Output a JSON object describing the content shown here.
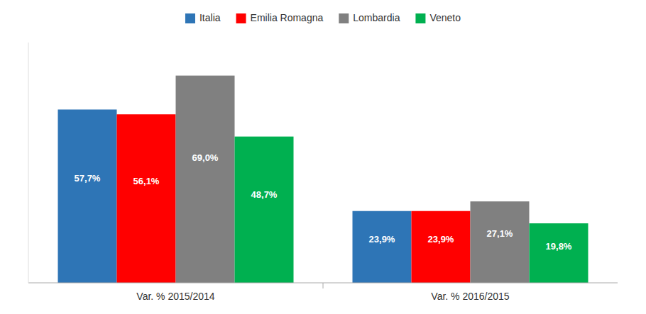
{
  "chart_data": {
    "type": "bar",
    "categories": [
      "Var. % 2015/2014",
      "Var. % 2016/2015"
    ],
    "series": [
      {
        "name": "Italia",
        "color": "#2E75B6",
        "values": [
          57.7,
          23.9
        ],
        "value_labels": [
          "57,7%",
          "23,9%"
        ]
      },
      {
        "name": "Emilia Romagna",
        "color": "#FF0000",
        "values": [
          56.1,
          23.9
        ],
        "value_labels": [
          "56,1%",
          "23,9%"
        ]
      },
      {
        "name": "Lombardia",
        "color": "#808080",
        "values": [
          69.0,
          27.1
        ],
        "value_labels": [
          "69,0%",
          "27,1%"
        ]
      },
      {
        "name": "Veneto",
        "color": "#00B050",
        "values": [
          48.7,
          19.8
        ],
        "value_labels": [
          "48,7%",
          "19,8%"
        ]
      }
    ],
    "ylim": [
      0,
      80
    ],
    "grid": false,
    "legend": "top",
    "data_labels": true,
    "tick_labels": "x"
  }
}
